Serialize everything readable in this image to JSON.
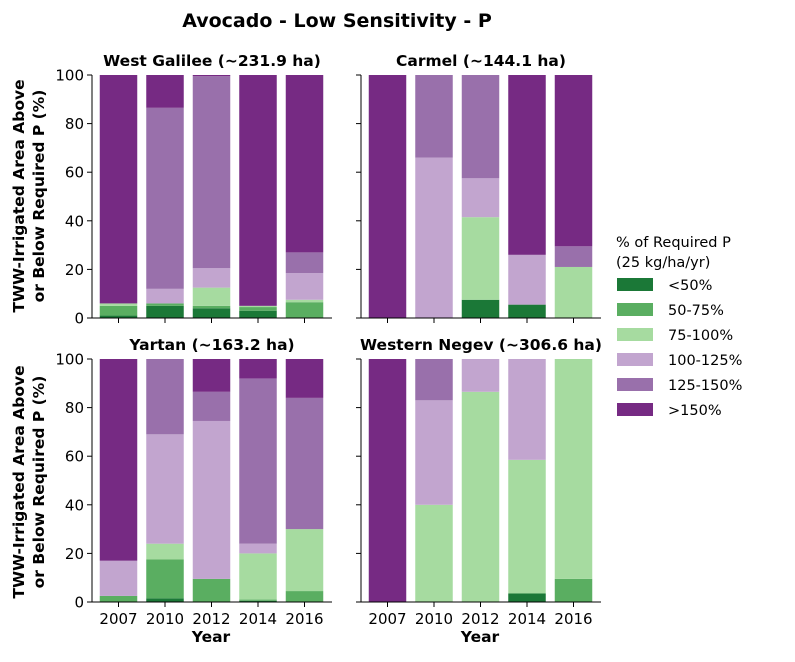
{
  "figure": {
    "title": "Avocado - Low Sensitivity - P",
    "ylabel_line1": "TWW-Irrigated Area Above",
    "ylabel_line2": "or Below Required P (%)",
    "xlabel": "Year"
  },
  "legend": {
    "title_line1": "% of Required P",
    "title_line2": "(25 kg/ha/yr)",
    "position": "right"
  },
  "colors": {
    "<50%": "#1b7837",
    "50-75%": "#5aae61",
    "75-100%": "#a6dba0",
    "100-125%": "#c2a5cf",
    "125-150%": "#9970ab",
    ">150%": "#762a83"
  },
  "chart_data": [
    {
      "type": "bar",
      "stacked": true,
      "title": "West Galilee (~231.9 ha)",
      "categories": [
        "2007",
        "2010",
        "2012",
        "2014",
        "2016"
      ],
      "ylim": [
        0,
        100
      ],
      "yticks": [
        0,
        20,
        40,
        60,
        80,
        100
      ],
      "series": [
        {
          "name": "<50%",
          "values": [
            1,
            5,
            4,
            3,
            0
          ]
        },
        {
          "name": "50-75%",
          "values": [
            4,
            1,
            1,
            1.5,
            6.5
          ]
        },
        {
          "name": "75-100%",
          "values": [
            1,
            0,
            7.5,
            0.5,
            1
          ]
        },
        {
          "name": "100-125%",
          "values": [
            0,
            6,
            8,
            0,
            11
          ]
        },
        {
          "name": "125-150%",
          "values": [
            0,
            74.5,
            79,
            0,
            8.5
          ]
        },
        {
          "name": ">150%",
          "values": [
            94,
            13.5,
            0.5,
            95,
            73
          ]
        }
      ]
    },
    {
      "type": "bar",
      "stacked": true,
      "title": "Carmel (~144.1 ha)",
      "categories": [
        "2007",
        "2010",
        "2012",
        "2014",
        "2016"
      ],
      "ylim": [
        0,
        100
      ],
      "yticks": [
        0,
        20,
        40,
        60,
        80,
        100
      ],
      "series": [
        {
          "name": "<50%",
          "values": [
            0,
            0,
            7.5,
            5.5,
            0
          ]
        },
        {
          "name": "50-75%",
          "values": [
            0,
            0,
            0,
            0,
            0
          ]
        },
        {
          "name": "75-100%",
          "values": [
            0,
            0,
            34,
            0,
            21
          ]
        },
        {
          "name": "100-125%",
          "values": [
            0,
            66,
            16,
            20.5,
            0
          ]
        },
        {
          "name": "125-150%",
          "values": [
            0,
            34,
            42.5,
            0,
            8.5
          ]
        },
        {
          "name": ">150%",
          "values": [
            100,
            0,
            0,
            74,
            70.5
          ]
        }
      ]
    },
    {
      "type": "bar",
      "stacked": true,
      "title": "Yartan (~163.2 ha)",
      "categories": [
        "2007",
        "2010",
        "2012",
        "2014",
        "2016"
      ],
      "ylim": [
        0,
        100
      ],
      "yticks": [
        0,
        20,
        40,
        60,
        80,
        100
      ],
      "series": [
        {
          "name": "<50%",
          "values": [
            0,
            1.5,
            0,
            0.5,
            0
          ]
        },
        {
          "name": "50-75%",
          "values": [
            2.5,
            16,
            9.5,
            0.5,
            4.5
          ]
        },
        {
          "name": "75-100%",
          "values": [
            0,
            6.5,
            0,
            19,
            25.5
          ]
        },
        {
          "name": "100-125%",
          "values": [
            14.5,
            45,
            65,
            4,
            0
          ]
        },
        {
          "name": "125-150%",
          "values": [
            0,
            31,
            12,
            68,
            54
          ]
        },
        {
          "name": ">150%",
          "values": [
            83,
            0,
            13.5,
            8,
            16
          ]
        }
      ]
    },
    {
      "type": "bar",
      "stacked": true,
      "title": "Western Negev (~306.6 ha)",
      "categories": [
        "2007",
        "2010",
        "2012",
        "2014",
        "2016"
      ],
      "ylim": [
        0,
        100
      ],
      "yticks": [
        0,
        20,
        40,
        60,
        80,
        100
      ],
      "series": [
        {
          "name": "<50%",
          "values": [
            0,
            0,
            0,
            3.5,
            0
          ]
        },
        {
          "name": "50-75%",
          "values": [
            0,
            0,
            0,
            0,
            9.5
          ]
        },
        {
          "name": "75-100%",
          "values": [
            0,
            40,
            86.5,
            55,
            90.5
          ]
        },
        {
          "name": "100-125%",
          "values": [
            0,
            43,
            13.5,
            41.5,
            0
          ]
        },
        {
          "name": "125-150%",
          "values": [
            0,
            17,
            0,
            0,
            0
          ]
        },
        {
          "name": ">150%",
          "values": [
            100,
            0,
            0,
            0,
            0
          ]
        }
      ]
    }
  ]
}
